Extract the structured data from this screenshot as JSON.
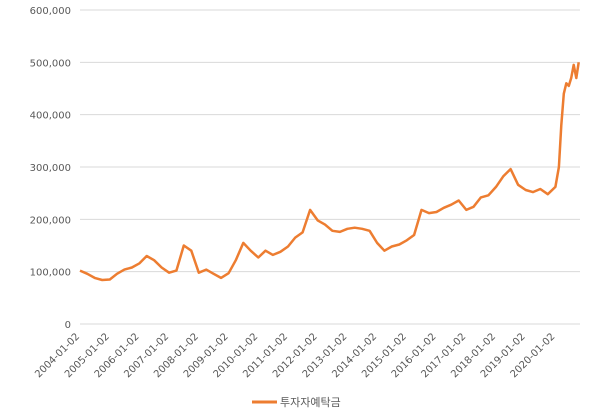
{
  "chart_data": {
    "type": "line",
    "title": "",
    "xlabel": "",
    "ylabel": "",
    "ylim": [
      0,
      600000
    ],
    "yticks": [
      "0",
      "100,000",
      "200,000",
      "300,000",
      "400,000",
      "500,000",
      "600,000"
    ],
    "ytick_values": [
      0,
      100000,
      200000,
      300000,
      400000,
      500000,
      600000
    ],
    "xticks": [
      "2004-01-02",
      "2005-01-02",
      "2006-01-02",
      "2007-01-02",
      "2008-01-02",
      "2009-01-02",
      "2010-01-02",
      "2011-01-02",
      "2012-01-02",
      "2013-01-02",
      "2014-01-02",
      "2015-01-02",
      "2016-01-02",
      "2017-01-02",
      "2018-01-02",
      "2019-01-02",
      "2020-01-02"
    ],
    "xlim": [
      "2004-01-02",
      "2020-10-31"
    ],
    "grid": true,
    "legend_position": "bottom",
    "series": [
      {
        "name": "투자자예탁금",
        "color": "#ED7D31",
        "x": [
          "2004-01-02",
          "2004-04-01",
          "2004-07-01",
          "2004-10-01",
          "2005-01-02",
          "2005-04-01",
          "2005-07-01",
          "2005-10-01",
          "2006-01-02",
          "2006-04-01",
          "2006-07-01",
          "2006-10-01",
          "2007-01-02",
          "2007-04-01",
          "2007-07-01",
          "2007-10-01",
          "2008-01-02",
          "2008-04-01",
          "2008-07-01",
          "2008-10-01",
          "2009-01-02",
          "2009-04-01",
          "2009-07-01",
          "2009-10-01",
          "2010-01-02",
          "2010-04-01",
          "2010-07-01",
          "2010-10-01",
          "2011-01-02",
          "2011-04-01",
          "2011-07-01",
          "2011-10-01",
          "2012-01-02",
          "2012-04-01",
          "2012-07-01",
          "2012-10-01",
          "2013-01-02",
          "2013-04-01",
          "2013-07-01",
          "2013-10-01",
          "2014-01-02",
          "2014-04-01",
          "2014-07-01",
          "2014-10-01",
          "2015-01-02",
          "2015-04-01",
          "2015-07-01",
          "2015-10-01",
          "2016-01-02",
          "2016-04-01",
          "2016-07-01",
          "2016-10-01",
          "2017-01-02",
          "2017-04-01",
          "2017-07-01",
          "2017-10-01",
          "2018-01-02",
          "2018-04-01",
          "2018-07-01",
          "2018-10-01",
          "2019-01-02",
          "2019-04-01",
          "2019-07-01",
          "2019-10-01",
          "2020-01-02",
          "2020-02-15",
          "2020-03-15",
          "2020-04-15",
          "2020-05-15",
          "2020-06-15",
          "2020-07-15",
          "2020-08-15",
          "2020-09-15",
          "2020-10-15"
        ],
        "values": [
          102000,
          96000,
          88000,
          84000,
          85000,
          96000,
          104000,
          108000,
          116000,
          130000,
          122000,
          108000,
          98000,
          102000,
          150000,
          140000,
          98000,
          104000,
          96000,
          88000,
          97000,
          122000,
          155000,
          140000,
          127000,
          140000,
          132000,
          138000,
          148000,
          165000,
          175000,
          218000,
          198000,
          190000,
          178000,
          176000,
          182000,
          184000,
          182000,
          178000,
          155000,
          140000,
          148000,
          152000,
          160000,
          170000,
          218000,
          212000,
          214000,
          222000,
          228000,
          236000,
          218000,
          224000,
          242000,
          246000,
          262000,
          282000,
          296000,
          266000,
          256000,
          252000,
          258000,
          248000,
          262000,
          300000,
          380000,
          440000,
          460000,
          455000,
          470000,
          495000,
          470000,
          500000
        ]
      }
    ]
  }
}
